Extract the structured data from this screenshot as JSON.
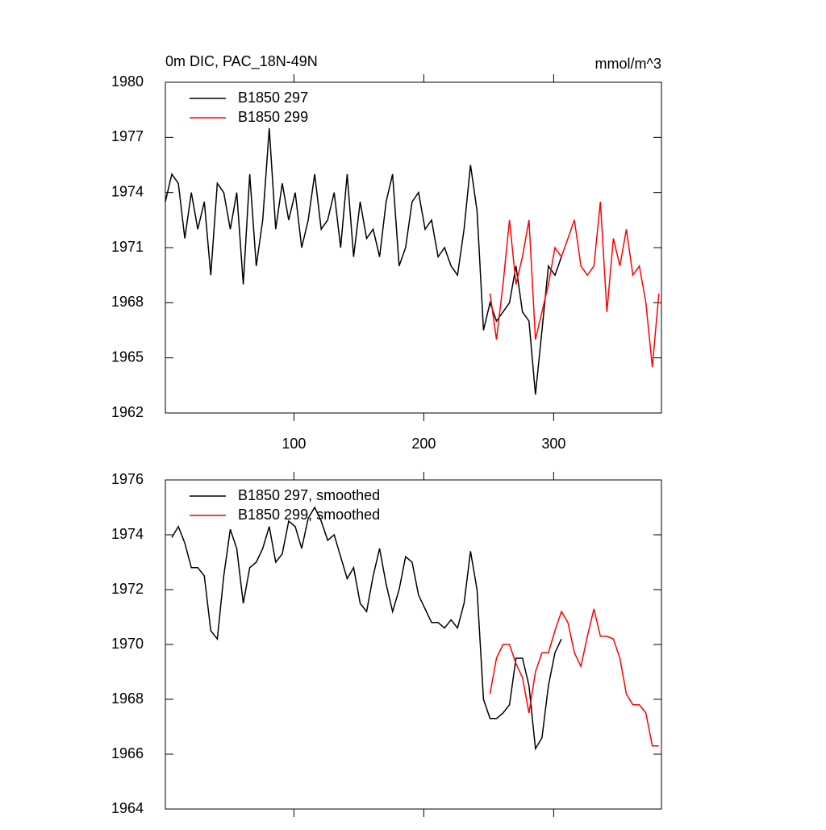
{
  "chart_data": [
    {
      "type": "line",
      "title": "0m DIC, PAC_18N-49N",
      "units": "mmol/m^3",
      "x": [
        1,
        6,
        11,
        16,
        21,
        26,
        31,
        36,
        41,
        46,
        51,
        56,
        61,
        66,
        71,
        76,
        81,
        86,
        91,
        96,
        101,
        106,
        111,
        116,
        121,
        126,
        131,
        136,
        141,
        146,
        151,
        156,
        161,
        166,
        171,
        176,
        181,
        186,
        191,
        196,
        201,
        206,
        211,
        216,
        221,
        226,
        231,
        236,
        241,
        246,
        251,
        256,
        261,
        266,
        271,
        276,
        281,
        286,
        291,
        296,
        301,
        306,
        311,
        316,
        321,
        326,
        331,
        336,
        341,
        346,
        351,
        356,
        361,
        366,
        371,
        376,
        381
      ],
      "series": [
        {
          "name": "B1850 297",
          "color": "#000000",
          "values": [
            1973.5,
            1975,
            1974.5,
            1971.5,
            1974,
            1972,
            1973.5,
            1969.5,
            1974.5,
            1974,
            1972,
            1974,
            1969,
            1975,
            1970,
            1972.5,
            1977.5,
            1972,
            1974.5,
            1972.5,
            1974,
            1971,
            1972.5,
            1975,
            1972,
            1972.5,
            1974,
            1971,
            1975,
            1970.5,
            1973.5,
            1971.5,
            1972,
            1970.5,
            1973.5,
            1975,
            1970,
            1971,
            1973.5,
            1974,
            1972,
            1972.5,
            1970.5,
            1971,
            1970,
            1969.5,
            1972,
            1975.5,
            1973,
            1966.5,
            1968,
            1967,
            1967.5,
            1968,
            1970,
            1967.5,
            1967,
            1963,
            1966.5,
            1970,
            1969.5,
            1970.5,
            null,
            null,
            null,
            null,
            null,
            null,
            null,
            null,
            null,
            null,
            null,
            null,
            null,
            null,
            null
          ]
        },
        {
          "name": "B1850 299",
          "color": "#ff0000",
          "values": [
            null,
            null,
            null,
            null,
            null,
            null,
            null,
            null,
            null,
            null,
            null,
            null,
            null,
            null,
            null,
            null,
            null,
            null,
            null,
            null,
            null,
            null,
            null,
            null,
            null,
            null,
            null,
            null,
            null,
            null,
            null,
            null,
            null,
            null,
            null,
            null,
            null,
            null,
            null,
            null,
            null,
            null,
            null,
            null,
            null,
            null,
            null,
            null,
            null,
            null,
            1968.5,
            1966,
            1969,
            1972.5,
            1969,
            1970.5,
            1972.5,
            1966,
            1967.5,
            1969,
            1971,
            1970.5,
            1971.5,
            1972.5,
            1970,
            1969.5,
            1970,
            1973.5,
            1967.5,
            1971.5,
            1970,
            1972,
            1969.5,
            1970,
            1968,
            1964.5,
            1968.5
          ]
        }
      ],
      "xlim": [
        1,
        383
      ],
      "xticks": [
        100,
        200,
        300
      ],
      "ylim": [
        1962,
        1980
      ],
      "yticks": [
        1962,
        1965,
        1968,
        1971,
        1974,
        1977,
        1980
      ]
    },
    {
      "type": "line",
      "x": [
        1,
        6,
        11,
        16,
        21,
        26,
        31,
        36,
        41,
        46,
        51,
        56,
        61,
        66,
        71,
        76,
        81,
        86,
        91,
        96,
        101,
        106,
        111,
        116,
        121,
        126,
        131,
        136,
        141,
        146,
        151,
        156,
        161,
        166,
        171,
        176,
        181,
        186,
        191,
        196,
        201,
        206,
        211,
        216,
        221,
        226,
        231,
        236,
        241,
        246,
        251,
        256,
        261,
        266,
        271,
        276,
        281,
        286,
        291,
        296,
        301,
        306,
        311,
        316,
        321,
        326,
        331,
        336,
        341,
        346,
        351,
        356,
        361,
        366,
        371,
        376,
        381
      ],
      "series": [
        {
          "name": "B1850 297, smoothed",
          "color": "#000000",
          "values": [
            null,
            1973.9,
            1974.3,
            1973.7,
            1972.8,
            1972.8,
            1972.5,
            1970.5,
            1970.2,
            1972.5,
            1974.2,
            1973.5,
            1971.5,
            1972.8,
            1973,
            1973.5,
            1974.3,
            1973,
            1973.3,
            1974.5,
            1974.3,
            1973.5,
            1974.6,
            1975,
            1974.5,
            1973.8,
            1974,
            1973.2,
            1972.4,
            1972.8,
            1971.5,
            1971.2,
            1972.5,
            1973.5,
            1972.2,
            1971.2,
            1972,
            1973.2,
            1973,
            1971.8,
            1971.3,
            1970.8,
            1970.8,
            1970.6,
            1970.9,
            1970.6,
            1971.5,
            1973.4,
            1972,
            1968,
            1967.3,
            1967.3,
            1967.5,
            1967.8,
            1969.5,
            1969.5,
            1968.5,
            1966.2,
            1966.6,
            1968.5,
            1969.7,
            1970.2,
            null,
            null,
            null,
            null,
            null,
            null,
            null,
            null,
            null,
            null,
            null,
            null,
            null,
            null,
            null
          ]
        },
        {
          "name": "B1850 299, smoothed",
          "color": "#ff0000",
          "values": [
            null,
            null,
            null,
            null,
            null,
            null,
            null,
            null,
            null,
            null,
            null,
            null,
            null,
            null,
            null,
            null,
            null,
            null,
            null,
            null,
            null,
            null,
            null,
            null,
            null,
            null,
            null,
            null,
            null,
            null,
            null,
            null,
            null,
            null,
            null,
            null,
            null,
            null,
            null,
            null,
            null,
            null,
            null,
            null,
            null,
            null,
            null,
            null,
            null,
            null,
            1968.2,
            1969.5,
            1970,
            1970,
            1969.3,
            1968.8,
            1967.5,
            1969,
            1969.7,
            1969.7,
            1970.5,
            1971.2,
            1970.8,
            1969.7,
            1969.2,
            1970.3,
            1971.3,
            1970.3,
            1970.3,
            1970.2,
            1969.5,
            1968.2,
            1967.8,
            1967.8,
            1967.5,
            1966.3,
            1966.3
          ]
        }
      ],
      "xlim": [
        1,
        383
      ],
      "xticks": [
        100,
        200,
        300
      ],
      "ylim": [
        1964,
        1976
      ],
      "yticks": [
        1964,
        1966,
        1968,
        1970,
        1972,
        1974,
        1976
      ]
    }
  ]
}
